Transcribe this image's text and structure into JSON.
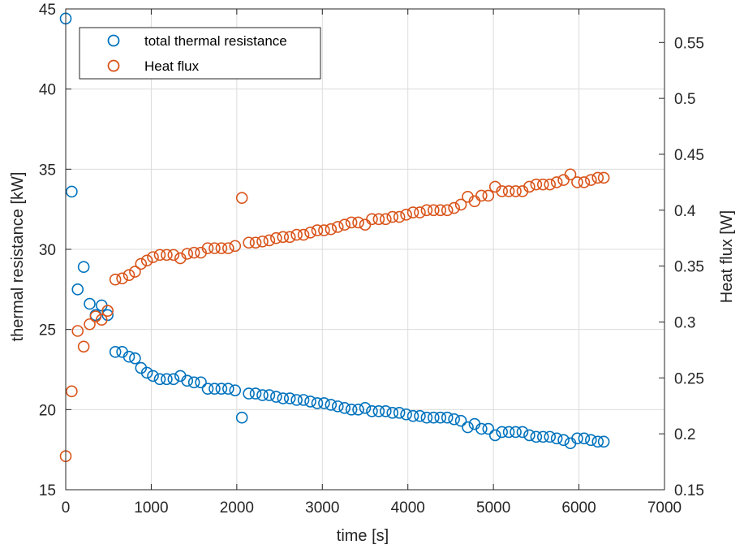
{
  "chart_data": {
    "type": "scatter",
    "title": "",
    "xlabel": "time [s]",
    "ylabel_left": "thermal resistance [kW]",
    "ylabel_right": "Heat flux [W]",
    "xlim": [
      0,
      7000
    ],
    "ylim_left": [
      15,
      45
    ],
    "ylim_right": [
      0.15,
      0.58
    ],
    "x_ticks": [
      "0",
      "1000",
      "2000",
      "3000",
      "4000",
      "5000",
      "6000",
      "7000"
    ],
    "y_left_ticks": [
      "15",
      "20",
      "25",
      "30",
      "35",
      "40",
      "45"
    ],
    "y_right_ticks": [
      "0.15",
      "0.2",
      "0.25",
      "0.3",
      "0.35",
      "0.4",
      "0.45",
      "0.5",
      "0.55"
    ],
    "grid": true,
    "legend_position": "top-left",
    "colors": {
      "resistance": "#0072BD",
      "heat_flux": "#D95319"
    },
    "series": [
      {
        "name": "total thermal resistance",
        "axis": "left",
        "x": [
          0,
          70,
          140,
          210,
          280,
          350,
          420,
          490,
          580,
          660,
          740,
          810,
          880,
          950,
          1020,
          1100,
          1180,
          1260,
          1340,
          1420,
          1500,
          1580,
          1660,
          1740,
          1820,
          1900,
          1980,
          2060,
          2140,
          2220,
          2300,
          2380,
          2460,
          2540,
          2620,
          2700,
          2780,
          2860,
          2940,
          3020,
          3100,
          3180,
          3260,
          3340,
          3420,
          3500,
          3580,
          3660,
          3740,
          3820,
          3900,
          3980,
          4060,
          4140,
          4220,
          4300,
          4380,
          4460,
          4540,
          4620,
          4700,
          4780,
          4860,
          4940,
          5020,
          5100,
          5180,
          5260,
          5340,
          5420,
          5500,
          5580,
          5660,
          5740,
          5820,
          5900,
          5980,
          6060,
          6140,
          6220,
          6290
        ],
        "y": [
          44.4,
          33.6,
          27.5,
          28.9,
          26.6,
          25.9,
          26.5,
          25.9,
          23.6,
          23.6,
          23.3,
          23.2,
          22.6,
          22.3,
          22.1,
          21.9,
          21.9,
          21.9,
          22.1,
          21.8,
          21.7,
          21.7,
          21.3,
          21.3,
          21.3,
          21.3,
          21.2,
          19.5,
          21.0,
          21.0,
          20.9,
          20.9,
          20.8,
          20.7,
          20.7,
          20.6,
          20.6,
          20.5,
          20.4,
          20.4,
          20.3,
          20.2,
          20.1,
          20.0,
          20.0,
          20.1,
          19.9,
          19.9,
          19.9,
          19.8,
          19.8,
          19.7,
          19.6,
          19.6,
          19.5,
          19.5,
          19.5,
          19.5,
          19.4,
          19.3,
          18.9,
          19.1,
          18.8,
          18.8,
          18.4,
          18.6,
          18.6,
          18.6,
          18.6,
          18.4,
          18.3,
          18.3,
          18.3,
          18.2,
          18.1,
          17.9,
          18.2,
          18.2,
          18.1,
          18.0,
          18.0
        ]
      },
      {
        "name": "Heat flux",
        "axis": "right",
        "x": [
          0,
          70,
          140,
          210,
          280,
          350,
          420,
          490,
          580,
          660,
          740,
          810,
          880,
          950,
          1020,
          1100,
          1180,
          1260,
          1340,
          1420,
          1500,
          1580,
          1660,
          1740,
          1820,
          1900,
          1980,
          2060,
          2140,
          2220,
          2300,
          2380,
          2460,
          2540,
          2620,
          2700,
          2780,
          2860,
          2940,
          3020,
          3100,
          3180,
          3260,
          3340,
          3420,
          3500,
          3580,
          3660,
          3740,
          3820,
          3900,
          3980,
          4060,
          4140,
          4220,
          4300,
          4380,
          4460,
          4540,
          4620,
          4700,
          4780,
          4860,
          4940,
          5020,
          5100,
          5180,
          5260,
          5340,
          5420,
          5500,
          5580,
          5660,
          5740,
          5820,
          5900,
          5980,
          6060,
          6140,
          6220,
          6290
        ],
        "y": [
          0.18,
          0.238,
          0.292,
          0.278,
          0.298,
          0.305,
          0.302,
          0.31,
          0.338,
          0.339,
          0.342,
          0.345,
          0.352,
          0.355,
          0.358,
          0.36,
          0.36,
          0.36,
          0.357,
          0.361,
          0.362,
          0.362,
          0.366,
          0.366,
          0.366,
          0.366,
          0.368,
          0.411,
          0.371,
          0.371,
          0.372,
          0.373,
          0.375,
          0.376,
          0.376,
          0.378,
          0.378,
          0.38,
          0.382,
          0.382,
          0.383,
          0.385,
          0.387,
          0.389,
          0.389,
          0.387,
          0.392,
          0.392,
          0.392,
          0.394,
          0.394,
          0.396,
          0.398,
          0.398,
          0.4,
          0.4,
          0.4,
          0.4,
          0.402,
          0.405,
          0.412,
          0.408,
          0.413,
          0.413,
          0.421,
          0.417,
          0.417,
          0.417,
          0.417,
          0.421,
          0.423,
          0.423,
          0.423,
          0.425,
          0.427,
          0.432,
          0.425,
          0.425,
          0.427,
          0.429,
          0.429
        ]
      }
    ]
  }
}
